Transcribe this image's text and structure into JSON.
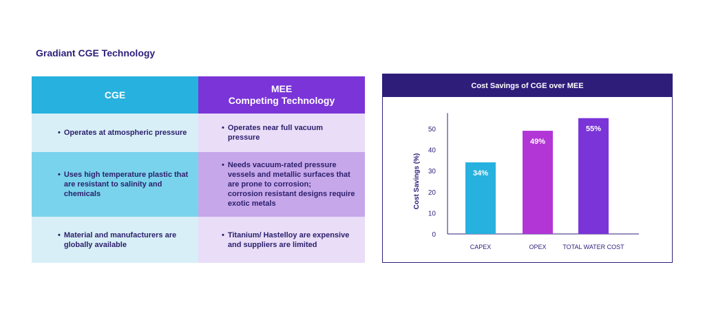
{
  "page": {
    "title": "Gradiant CGE Technology"
  },
  "table": {
    "headers": [
      {
        "line1": "CGE",
        "line2": ""
      },
      {
        "line1": "MEE",
        "line2": "Competing Technology"
      }
    ],
    "rows": [
      {
        "cge": [
          "Operates at atmospheric pressure"
        ],
        "mee": [
          "Operates near full vacuum pressure"
        ]
      },
      {
        "cge": [
          "Uses high temperature plastic that",
          "are resistant to salinity and",
          "chemicals"
        ],
        "mee": [
          "Needs vacuum-rated pressure",
          "vessels and metallic surfaces that",
          "are prone to corrosion;",
          "corrosion resistant designs require",
          "exotic metals"
        ]
      },
      {
        "cge": [
          "Material and manufacturers are",
          "globally available"
        ],
        "mee": [
          "Titanium/ Hastelloy are expensive",
          "and suppliers are limited"
        ]
      }
    ],
    "bullet": "•"
  },
  "chart_data": {
    "type": "bar",
    "title": "Cost Savings of CGE over MEE",
    "xlabel": "",
    "ylabel": "Cost Savings (%)",
    "categories": [
      "CAPEX",
      "OPEX",
      "TOTAL WATER COST"
    ],
    "values": [
      34,
      49,
      55
    ],
    "data_labels": [
      "34%",
      "49%",
      "55%"
    ],
    "colors": [
      "#27b1de",
      "#b236d6",
      "#7a34d8"
    ],
    "yticks": [
      0,
      10,
      20,
      30,
      40,
      50
    ],
    "ylim": [
      0,
      60
    ],
    "grid": false,
    "legend": "none"
  }
}
